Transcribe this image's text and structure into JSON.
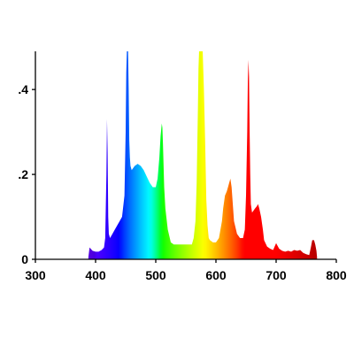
{
  "chart_data": {
    "type": "area",
    "title": "",
    "xlabel": "",
    "ylabel": "",
    "xlim": [
      300,
      800
    ],
    "ylim": [
      0,
      0.49
    ],
    "x_ticks": [
      300,
      400,
      500,
      600,
      700,
      800
    ],
    "x_tick_labels": [
      "300",
      "400",
      "500",
      "600",
      "700",
      "800"
    ],
    "y_ticks": [
      0,
      0.2,
      0.4
    ],
    "y_tick_labels": [
      "0",
      ".2",
      ".4"
    ],
    "grid": false,
    "fill": "spectral",
    "series": [
      {
        "x": [
          388,
          390,
          395,
          400,
          405,
          410,
          414,
          416,
          418,
          419,
          420,
          421,
          422,
          424,
          428,
          432,
          436,
          440,
          444,
          448,
          450,
          451,
          452,
          453,
          454,
          455,
          456,
          457,
          458,
          460,
          465,
          470,
          475,
          480,
          485,
          490,
          495,
          500,
          503,
          506,
          508,
          510,
          511,
          512,
          513,
          514,
          516,
          520,
          525,
          530,
          535,
          540,
          545,
          550,
          555,
          560,
          563,
          566,
          568,
          570,
          571,
          572,
          573,
          574,
          575,
          576,
          578,
          580,
          582,
          584,
          586,
          588,
          590,
          595,
          600,
          605,
          610,
          612,
          615,
          618,
          620,
          622,
          624,
          626,
          628,
          630,
          635,
          640,
          645,
          648,
          650,
          652,
          653,
          654,
          655,
          656,
          657,
          658,
          660,
          665,
          668,
          670,
          672,
          675,
          678,
          680,
          685,
          690,
          695,
          700,
          705,
          710,
          715,
          720,
          725,
          730,
          735,
          740,
          745,
          750,
          755,
          758,
          760,
          763,
          765,
          767,
          768
        ],
        "y": [
          0.005,
          0.028,
          0.02,
          0.018,
          0.018,
          0.022,
          0.028,
          0.05,
          0.2,
          0.33,
          0.25,
          0.1,
          0.06,
          0.05,
          0.06,
          0.07,
          0.08,
          0.09,
          0.1,
          0.15,
          0.3,
          0.44,
          0.49,
          0.49,
          0.49,
          0.4,
          0.28,
          0.24,
          0.22,
          0.21,
          0.22,
          0.225,
          0.22,
          0.21,
          0.195,
          0.18,
          0.17,
          0.17,
          0.19,
          0.24,
          0.29,
          0.32,
          0.31,
          0.27,
          0.22,
          0.17,
          0.12,
          0.07,
          0.04,
          0.035,
          0.035,
          0.035,
          0.035,
          0.035,
          0.035,
          0.035,
          0.05,
          0.09,
          0.18,
          0.35,
          0.45,
          0.49,
          0.49,
          0.49,
          0.49,
          0.49,
          0.49,
          0.4,
          0.28,
          0.14,
          0.08,
          0.05,
          0.045,
          0.04,
          0.04,
          0.05,
          0.09,
          0.12,
          0.15,
          0.16,
          0.17,
          0.18,
          0.19,
          0.17,
          0.13,
          0.09,
          0.06,
          0.05,
          0.05,
          0.07,
          0.15,
          0.3,
          0.42,
          0.47,
          0.43,
          0.3,
          0.2,
          0.13,
          0.11,
          0.12,
          0.125,
          0.13,
          0.12,
          0.1,
          0.07,
          0.045,
          0.03,
          0.025,
          0.022,
          0.038,
          0.025,
          0.02,
          0.018,
          0.02,
          0.018,
          0.022,
          0.02,
          0.022,
          0.015,
          0.012,
          0.01,
          0.03,
          0.045,
          0.045,
          0.035,
          0.02,
          0.005
        ]
      }
    ]
  }
}
